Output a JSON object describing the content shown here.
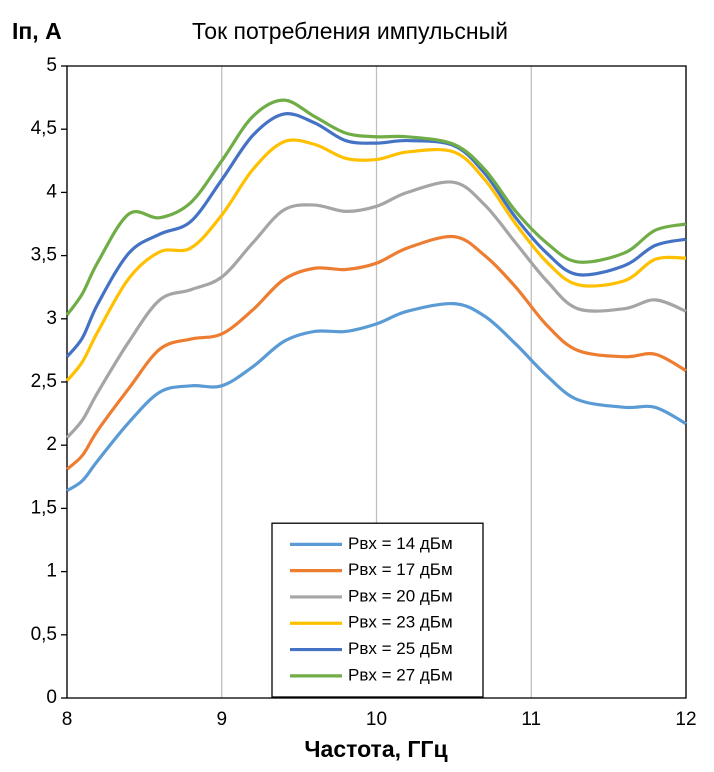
{
  "chart_data": {
    "type": "line",
    "title": "Ток потребления импульсный",
    "ylabel": "Iп, А",
    "xlabel": "Частота, ГГц",
    "x": [
      8,
      8.1,
      8.2,
      8.4,
      8.6,
      8.8,
      9,
      9.2,
      9.4,
      9.6,
      9.8,
      10,
      10.2,
      10.5,
      10.7,
      10.9,
      11.1,
      11.3,
      11.6,
      11.8,
      12
    ],
    "series": [
      {
        "name": "Pвх = 14 дБм",
        "color": "#5b9bd5",
        "values": [
          1.64,
          1.72,
          1.88,
          2.18,
          2.42,
          2.47,
          2.47,
          2.62,
          2.82,
          2.9,
          2.9,
          2.96,
          3.06,
          3.12,
          3.02,
          2.8,
          2.55,
          2.36,
          2.3,
          2.3,
          2.17
        ]
      },
      {
        "name": "Pвх = 17 дБм",
        "color": "#ed7d31",
        "values": [
          1.81,
          1.92,
          2.12,
          2.45,
          2.76,
          2.84,
          2.88,
          3.07,
          3.31,
          3.4,
          3.39,
          3.44,
          3.56,
          3.65,
          3.5,
          3.25,
          2.95,
          2.75,
          2.7,
          2.72,
          2.59
        ]
      },
      {
        "name": "Pвх = 20 дБм",
        "color": "#a5a5a5",
        "values": [
          2.06,
          2.2,
          2.42,
          2.82,
          3.15,
          3.23,
          3.33,
          3.6,
          3.86,
          3.9,
          3.85,
          3.89,
          4.0,
          4.08,
          3.9,
          3.6,
          3.3,
          3.08,
          3.08,
          3.15,
          3.06
        ]
      },
      {
        "name": "Pвх = 23 дБм",
        "color": "#ffc000",
        "values": [
          2.51,
          2.66,
          2.9,
          3.32,
          3.53,
          3.56,
          3.82,
          4.18,
          4.4,
          4.38,
          4.27,
          4.26,
          4.32,
          4.32,
          4.1,
          3.75,
          3.45,
          3.27,
          3.3,
          3.47,
          3.48
        ]
      },
      {
        "name": "Pвх = 25 дБм",
        "color": "#4472c4",
        "values": [
          2.7,
          2.85,
          3.12,
          3.52,
          3.67,
          3.77,
          4.1,
          4.45,
          4.62,
          4.55,
          4.41,
          4.39,
          4.41,
          4.37,
          4.15,
          3.8,
          3.52,
          3.35,
          3.42,
          3.58,
          3.63
        ]
      },
      {
        "name": "Pвх = 27 дБм",
        "color": "#70ad47",
        "values": [
          3.03,
          3.2,
          3.45,
          3.83,
          3.8,
          3.92,
          4.25,
          4.6,
          4.73,
          4.6,
          4.47,
          4.44,
          4.44,
          4.38,
          4.18,
          3.85,
          3.6,
          3.45,
          3.52,
          3.7,
          3.75
        ]
      }
    ],
    "xlim": [
      8,
      12
    ],
    "xticks": [
      8,
      9,
      10,
      11,
      12
    ],
    "ylim": [
      0,
      5
    ],
    "yticks": [
      0,
      {
        "value": 0.5,
        "label": "0,5"
      },
      1,
      {
        "value": 1.5,
        "label": "1,5"
      },
      2,
      {
        "value": 2.5,
        "label": "2,5"
      },
      3,
      {
        "value": 3.5,
        "label": "3,5"
      },
      4,
      {
        "value": 4.5,
        "label": "4,5"
      },
      5
    ],
    "grid": "x",
    "legend": "bottom-center"
  }
}
